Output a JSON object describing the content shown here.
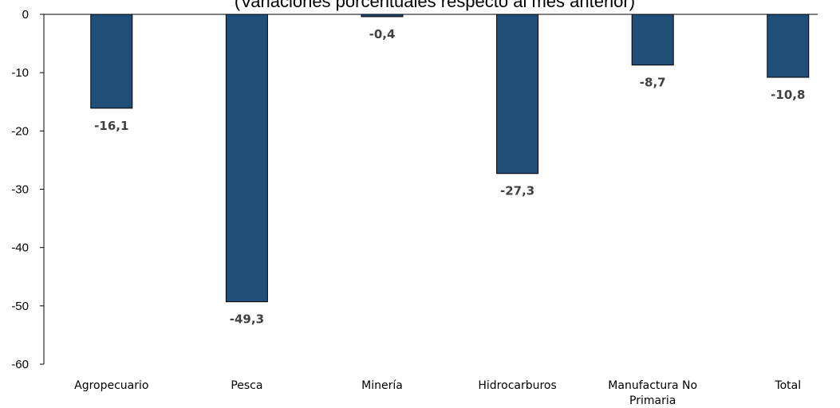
{
  "chart_data": {
    "type": "bar",
    "subtitle": "(Variaciones porcentuales respecto al mes anterior)",
    "categories": [
      [
        "Agropecuario"
      ],
      [
        "Pesca"
      ],
      [
        "Minería"
      ],
      [
        "Hidrocarburos"
      ],
      [
        "Manufactura No",
        "Primaria"
      ],
      [
        "Total"
      ]
    ],
    "values": [
      -16.1,
      -49.3,
      -0.4,
      -27.3,
      -8.7,
      -10.8
    ],
    "data_labels": [
      "-16,1",
      "-49,3",
      "-0,4",
      "-27,3",
      "-8,7",
      "-10,8"
    ],
    "ylim": [
      -60,
      0
    ],
    "yticks": [
      0,
      -10,
      -20,
      -30,
      -40,
      -50,
      -60
    ],
    "grid": false,
    "colors": {
      "bar_fill": "#1f4e79",
      "bar_stroke": "#000000",
      "data_label": "#404040"
    }
  }
}
